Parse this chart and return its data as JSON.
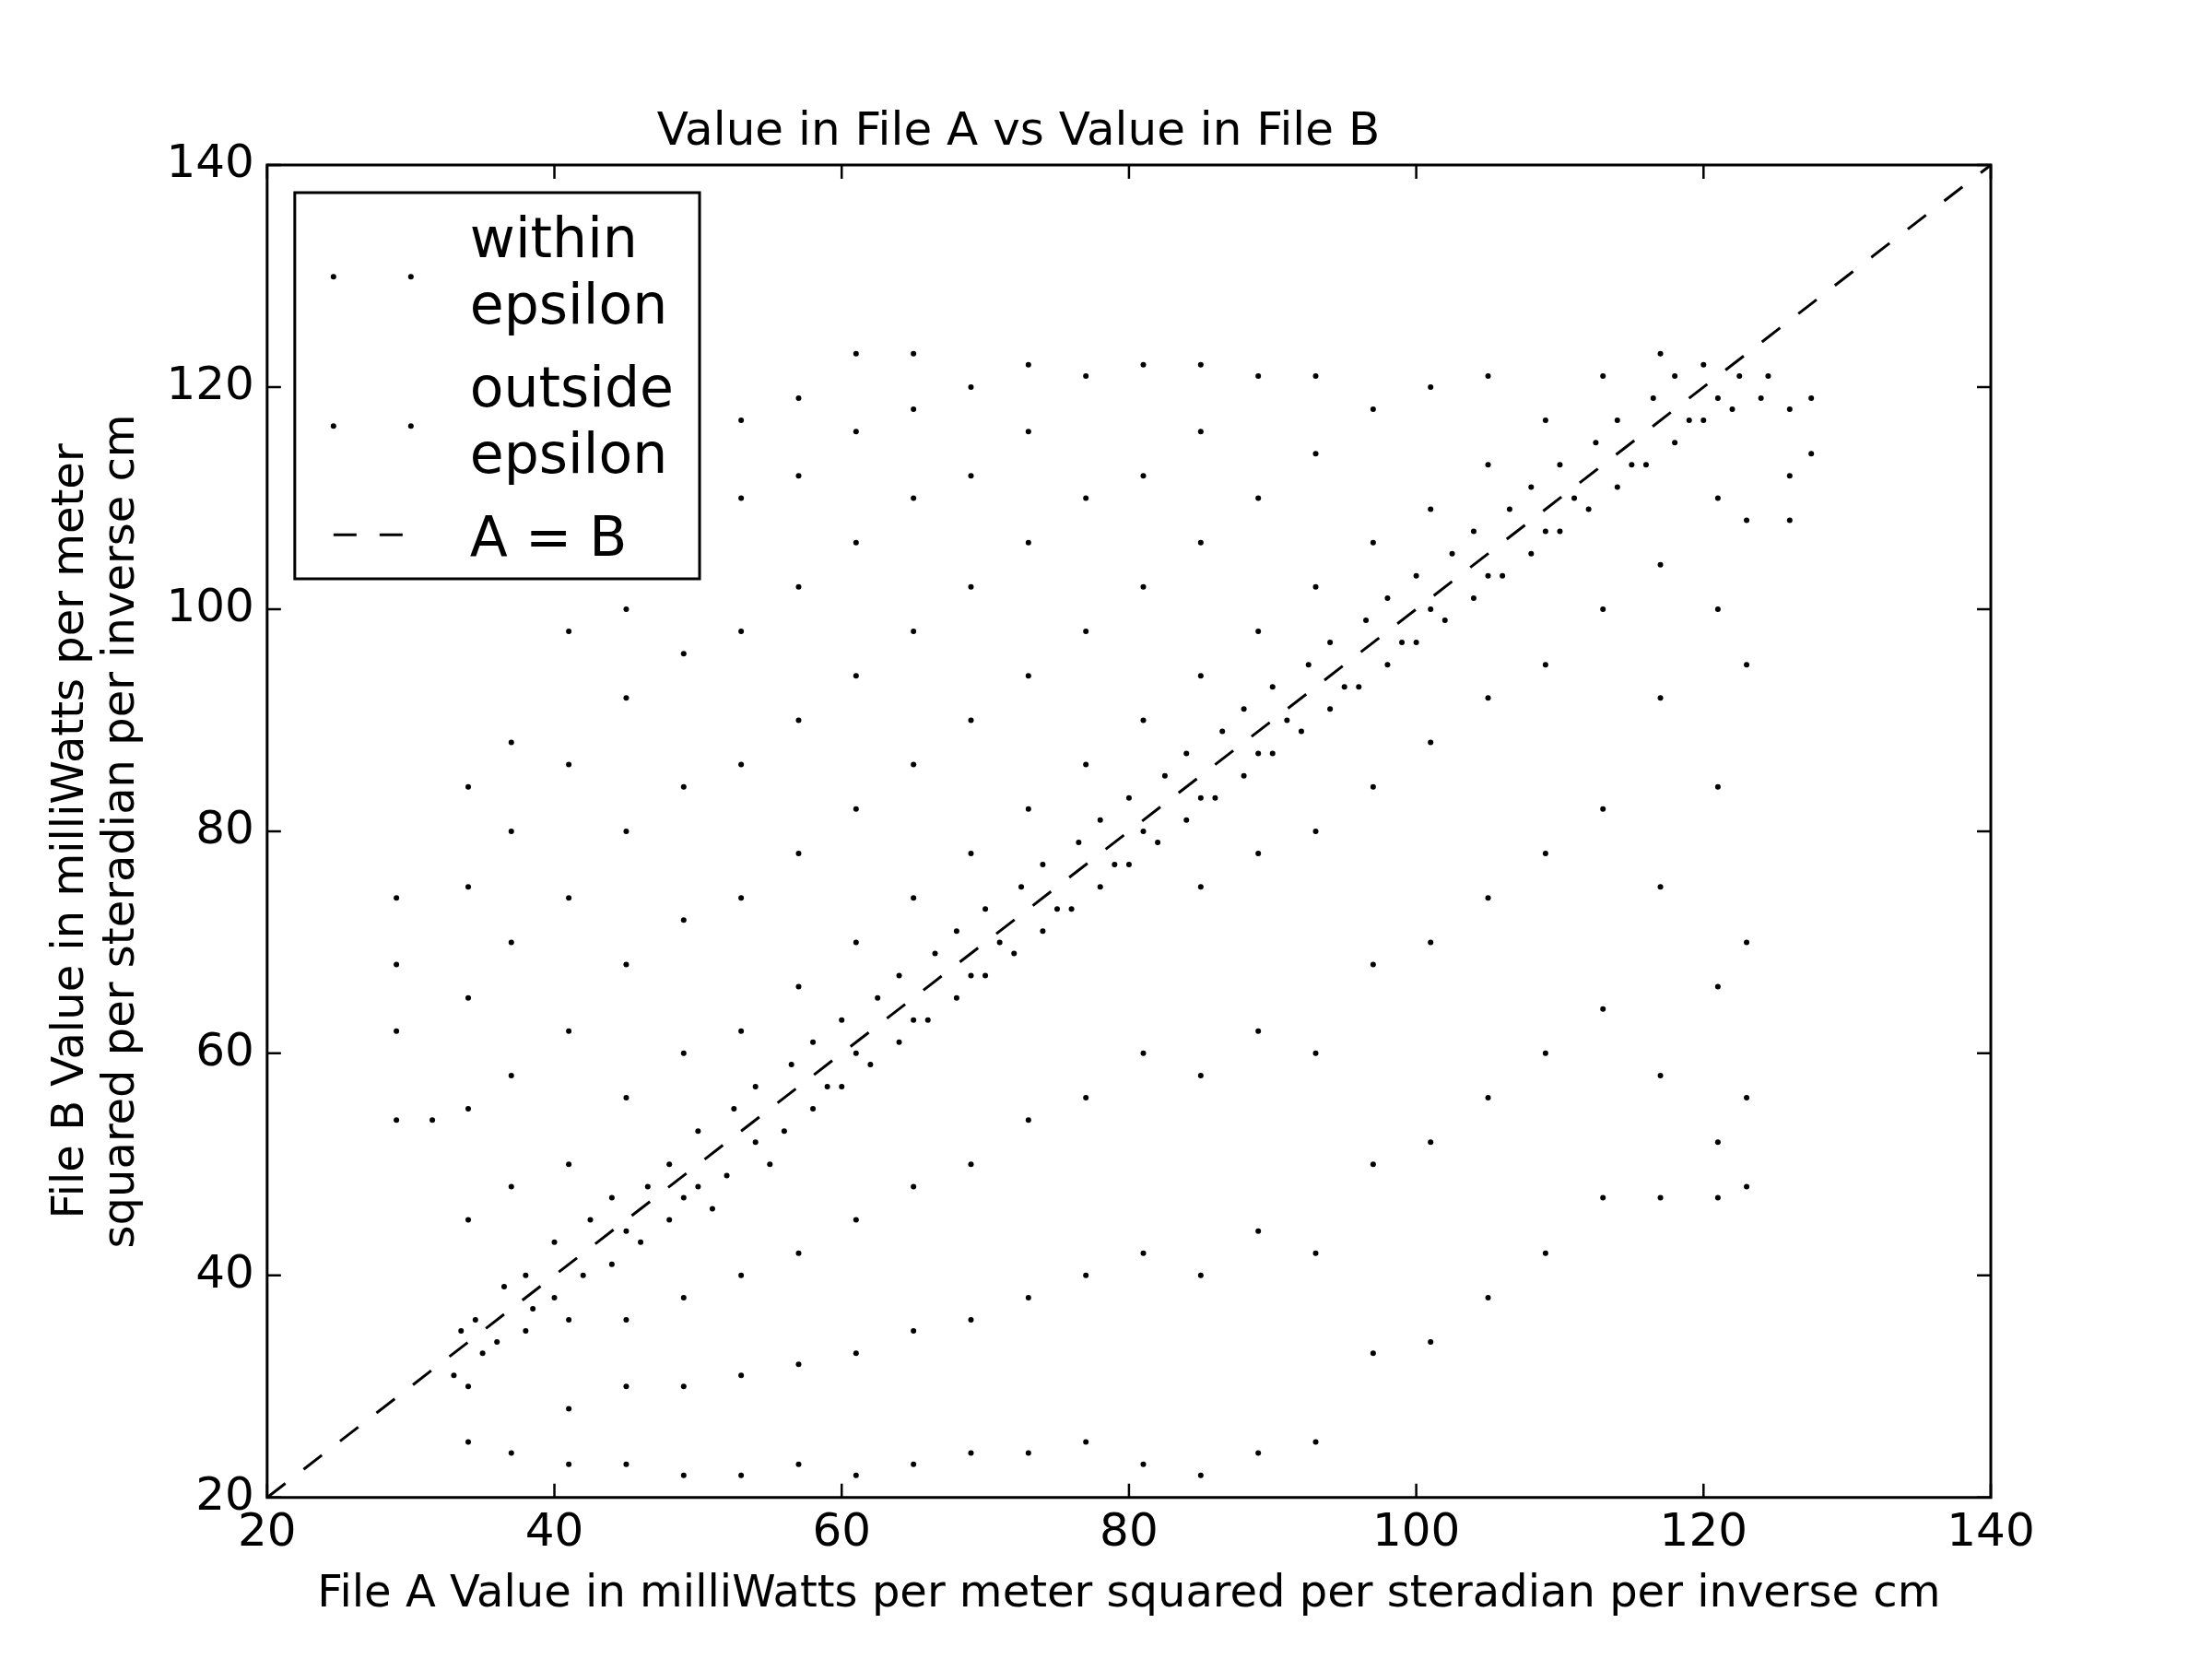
{
  "chart_data": {
    "type": "scatter",
    "title": "Value in File A vs Value in File B",
    "xlabel": "File A Value in milliWatts per meter squared per steradian per inverse cm",
    "ylabel": "File B Value in milliWatts per meter squared per steradian per inverse cm",
    "xlim": [
      20,
      140
    ],
    "ylim": [
      20,
      140
    ],
    "xticks": [
      20,
      40,
      60,
      80,
      100,
      120,
      140
    ],
    "yticks": [
      20,
      40,
      60,
      80,
      100,
      120,
      140
    ],
    "legend": "top left",
    "marker": "circle",
    "series": [
      {
        "name": "within epsilon",
        "color": "#000000",
        "x": [
          33,
          33.5,
          34,
          34.5,
          35,
          36,
          36.5,
          38,
          38,
          38.5,
          40,
          40,
          41,
          42,
          42.5,
          44,
          44,
          45,
          46,
          46.5,
          48,
          48,
          49,
          50,
          50,
          51,
          52,
          52.5,
          54,
          54,
          55,
          56,
          56.5,
          58,
          58,
          59,
          60,
          60,
          61,
          62,
          62.5,
          64,
          64,
          65,
          66,
          66.5,
          68,
          68,
          69,
          70,
          70,
          71,
          72,
          72.5,
          74,
          74,
          75,
          76,
          76.5,
          78,
          78,
          79,
          80,
          80,
          81,
          82,
          82.5,
          84,
          84,
          85,
          86,
          86.5,
          88,
          88,
          89,
          90,
          90,
          91,
          92,
          92.5,
          94,
          94,
          95,
          96,
          96.5,
          98,
          98,
          99,
          100,
          100,
          101,
          102,
          102.5,
          104,
          104,
          105,
          106,
          106.5,
          108,
          108,
          109,
          110,
          110,
          111,
          112,
          112.5,
          114,
          114,
          115,
          116,
          116.5,
          118,
          118,
          119,
          120,
          120,
          121,
          122,
          122.5,
          124,
          124.5
        ],
        "values": [
          31,
          35,
          30,
          36,
          33,
          34,
          39,
          35,
          40,
          37,
          38,
          43,
          36,
          40,
          45,
          41,
          47,
          44,
          43,
          48,
          45,
          50,
          47,
          48,
          53,
          46,
          49,
          55,
          52,
          57,
          50,
          53,
          59,
          55,
          61,
          57,
          57,
          63,
          60,
          59,
          65,
          61,
          67,
          63,
          63,
          69,
          65,
          71,
          67,
          67,
          73,
          70,
          69,
          75,
          71,
          77,
          73,
          73,
          79,
          75,
          81,
          77,
          77,
          83,
          80,
          79,
          85,
          81,
          87,
          83,
          83,
          89,
          85,
          91,
          87,
          87,
          93,
          90,
          89,
          95,
          91,
          97,
          93,
          93,
          99,
          95,
          101,
          97,
          97,
          103,
          100,
          99,
          105,
          101,
          107,
          103,
          103,
          109,
          105,
          111,
          107,
          107,
          113,
          110,
          109,
          115,
          111,
          117,
          113,
          113,
          119,
          115,
          121,
          117,
          117,
          122,
          119,
          118,
          121,
          119,
          121
        ]
      },
      {
        "name": "outside epsilon",
        "color": "#000000",
        "x": [
          29,
          29,
          29,
          29,
          31.5,
          34,
          34,
          34,
          34,
          34,
          34,
          37,
          37,
          37,
          37,
          37,
          37,
          41,
          41,
          41,
          41,
          41,
          41,
          41,
          45,
          45,
          45,
          45,
          45,
          45,
          45,
          45,
          49,
          49,
          49,
          49,
          49,
          49,
          49,
          53,
          53,
          53,
          53,
          53,
          53,
          53,
          53,
          53,
          57,
          57,
          57,
          57,
          57,
          57,
          57,
          57,
          57,
          61,
          61,
          61,
          61,
          61,
          61,
          61,
          61,
          61,
          65,
          65,
          65,
          65,
          65,
          65,
          65,
          65,
          65,
          69,
          69,
          69,
          69,
          69,
          69,
          69,
          69,
          73,
          73,
          73,
          73,
          73,
          73,
          73,
          73,
          77,
          77,
          77,
          77,
          77,
          77,
          77,
          81,
          81,
          81,
          81,
          81,
          81,
          81,
          85,
          85,
          85,
          85,
          85,
          85,
          85,
          85,
          89,
          89,
          89,
          89,
          89,
          89,
          89,
          93,
          93,
          93,
          93,
          93,
          93,
          93,
          97,
          97,
          97,
          97,
          97,
          97,
          101,
          101,
          101,
          101,
          101,
          101,
          105,
          105,
          105,
          105,
          105,
          105,
          109,
          109,
          109,
          109,
          109,
          113,
          113,
          113,
          113,
          113,
          117,
          117,
          117,
          117,
          117,
          117,
          121,
          121,
          121,
          121,
          121,
          121,
          123,
          123,
          123,
          123,
          123,
          126,
          126,
          126,
          127.5,
          127.5
        ],
        "values": [
          54,
          62,
          68,
          74,
          54,
          25,
          45,
          55,
          65,
          75,
          84,
          24,
          48,
          58,
          70,
          80,
          88,
          23,
          28,
          50,
          62,
          74,
          86,
          98,
          23,
          30,
          36,
          56,
          68,
          80,
          92,
          100,
          22,
          30,
          38,
          60,
          72,
          84,
          96,
          22,
          31,
          40,
          62,
          74,
          86,
          98,
          110,
          117,
          23,
          32,
          42,
          66,
          78,
          90,
          102,
          112,
          119,
          22,
          33,
          45,
          70,
          82,
          94,
          106,
          116,
          123,
          23,
          35,
          48,
          74,
          86,
          98,
          110,
          118,
          123,
          24,
          36,
          50,
          78,
          90,
          102,
          112,
          120,
          24,
          38,
          54,
          82,
          94,
          106,
          116,
          122,
          25,
          40,
          56,
          86,
          98,
          110,
          121,
          23,
          42,
          60,
          90,
          102,
          112,
          122,
          22,
          40,
          58,
          75,
          94,
          106,
          116,
          122,
          24,
          44,
          62,
          78,
          98,
          110,
          121,
          25,
          42,
          60,
          80,
          102,
          114,
          121,
          33,
          50,
          68,
          84,
          106,
          118,
          34,
          52,
          70,
          88,
          109,
          120,
          38,
          56,
          74,
          92,
          113,
          121,
          42,
          60,
          78,
          95,
          117,
          47,
          64,
          82,
          100,
          121,
          47,
          58,
          75,
          92,
          104,
          123,
          47,
          52,
          66,
          84,
          100,
          110,
          48,
          56,
          70,
          95,
          108,
          108,
          112,
          118,
          114,
          119
        ]
      },
      {
        "name": "A = B",
        "type": "line",
        "color": "#000000",
        "line_style": "dashed",
        "marker": "none",
        "x": [
          20,
          140
        ],
        "values": [
          20,
          140
        ]
      }
    ]
  }
}
